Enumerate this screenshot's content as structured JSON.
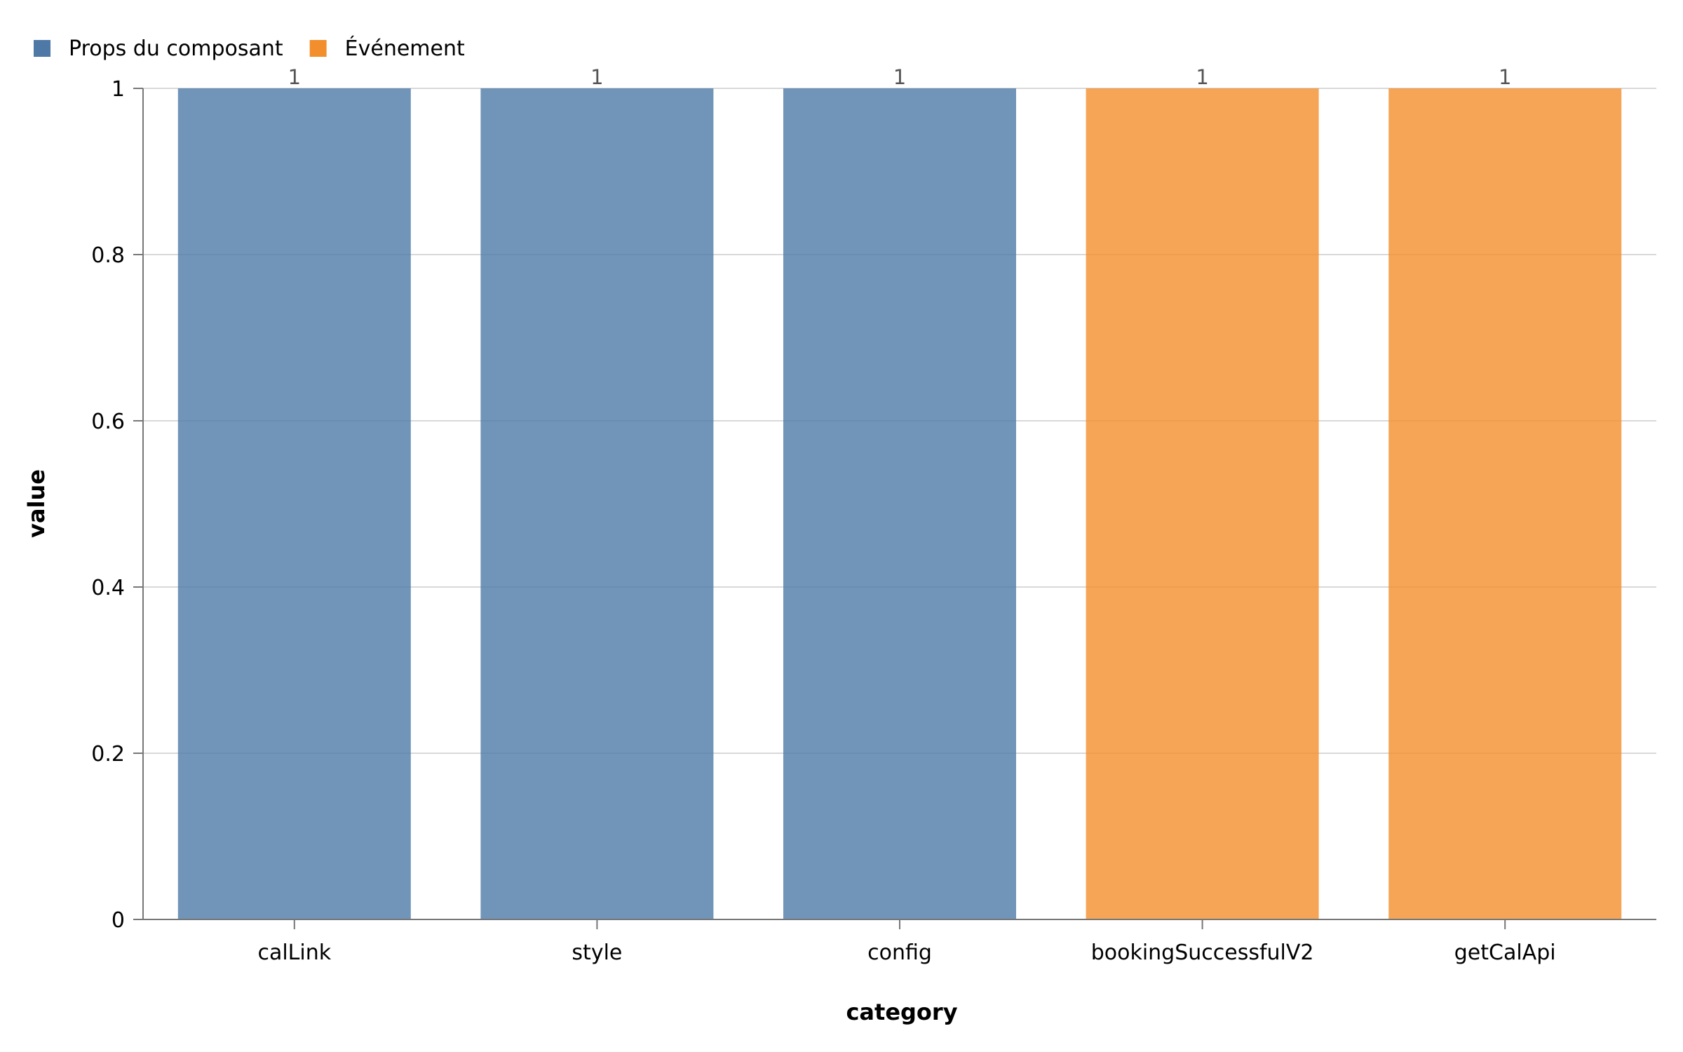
{
  "chart_data": {
    "type": "bar",
    "categories": [
      "calLink",
      "style",
      "config",
      "bookingSuccessfulV2",
      "getCalApi"
    ],
    "values": [
      1,
      1,
      1,
      1,
      1
    ],
    "groups": [
      "Props du composant",
      "Props du composant",
      "Props du composant",
      "Événement",
      "Événement"
    ],
    "data_labels": [
      "1",
      "1",
      "1",
      "1",
      "1"
    ],
    "legend": [
      {
        "name": "Props du composant",
        "color": "#4e79a7"
      },
      {
        "name": "Événement",
        "color": "#f28e2b"
      }
    ],
    "xlabel": "category",
    "ylabel": "value",
    "ylim": [
      0,
      1
    ],
    "yticks": [
      0,
      0.2,
      0.4,
      0.6,
      0.8,
      1
    ],
    "ytick_labels": [
      "0",
      "0.2",
      "0.4",
      "0.6",
      "0.8",
      "1"
    ],
    "grid": true,
    "legend_position": "top-left",
    "colors": {
      "props": "#4e79a7",
      "event": "#f28e2b"
    }
  }
}
